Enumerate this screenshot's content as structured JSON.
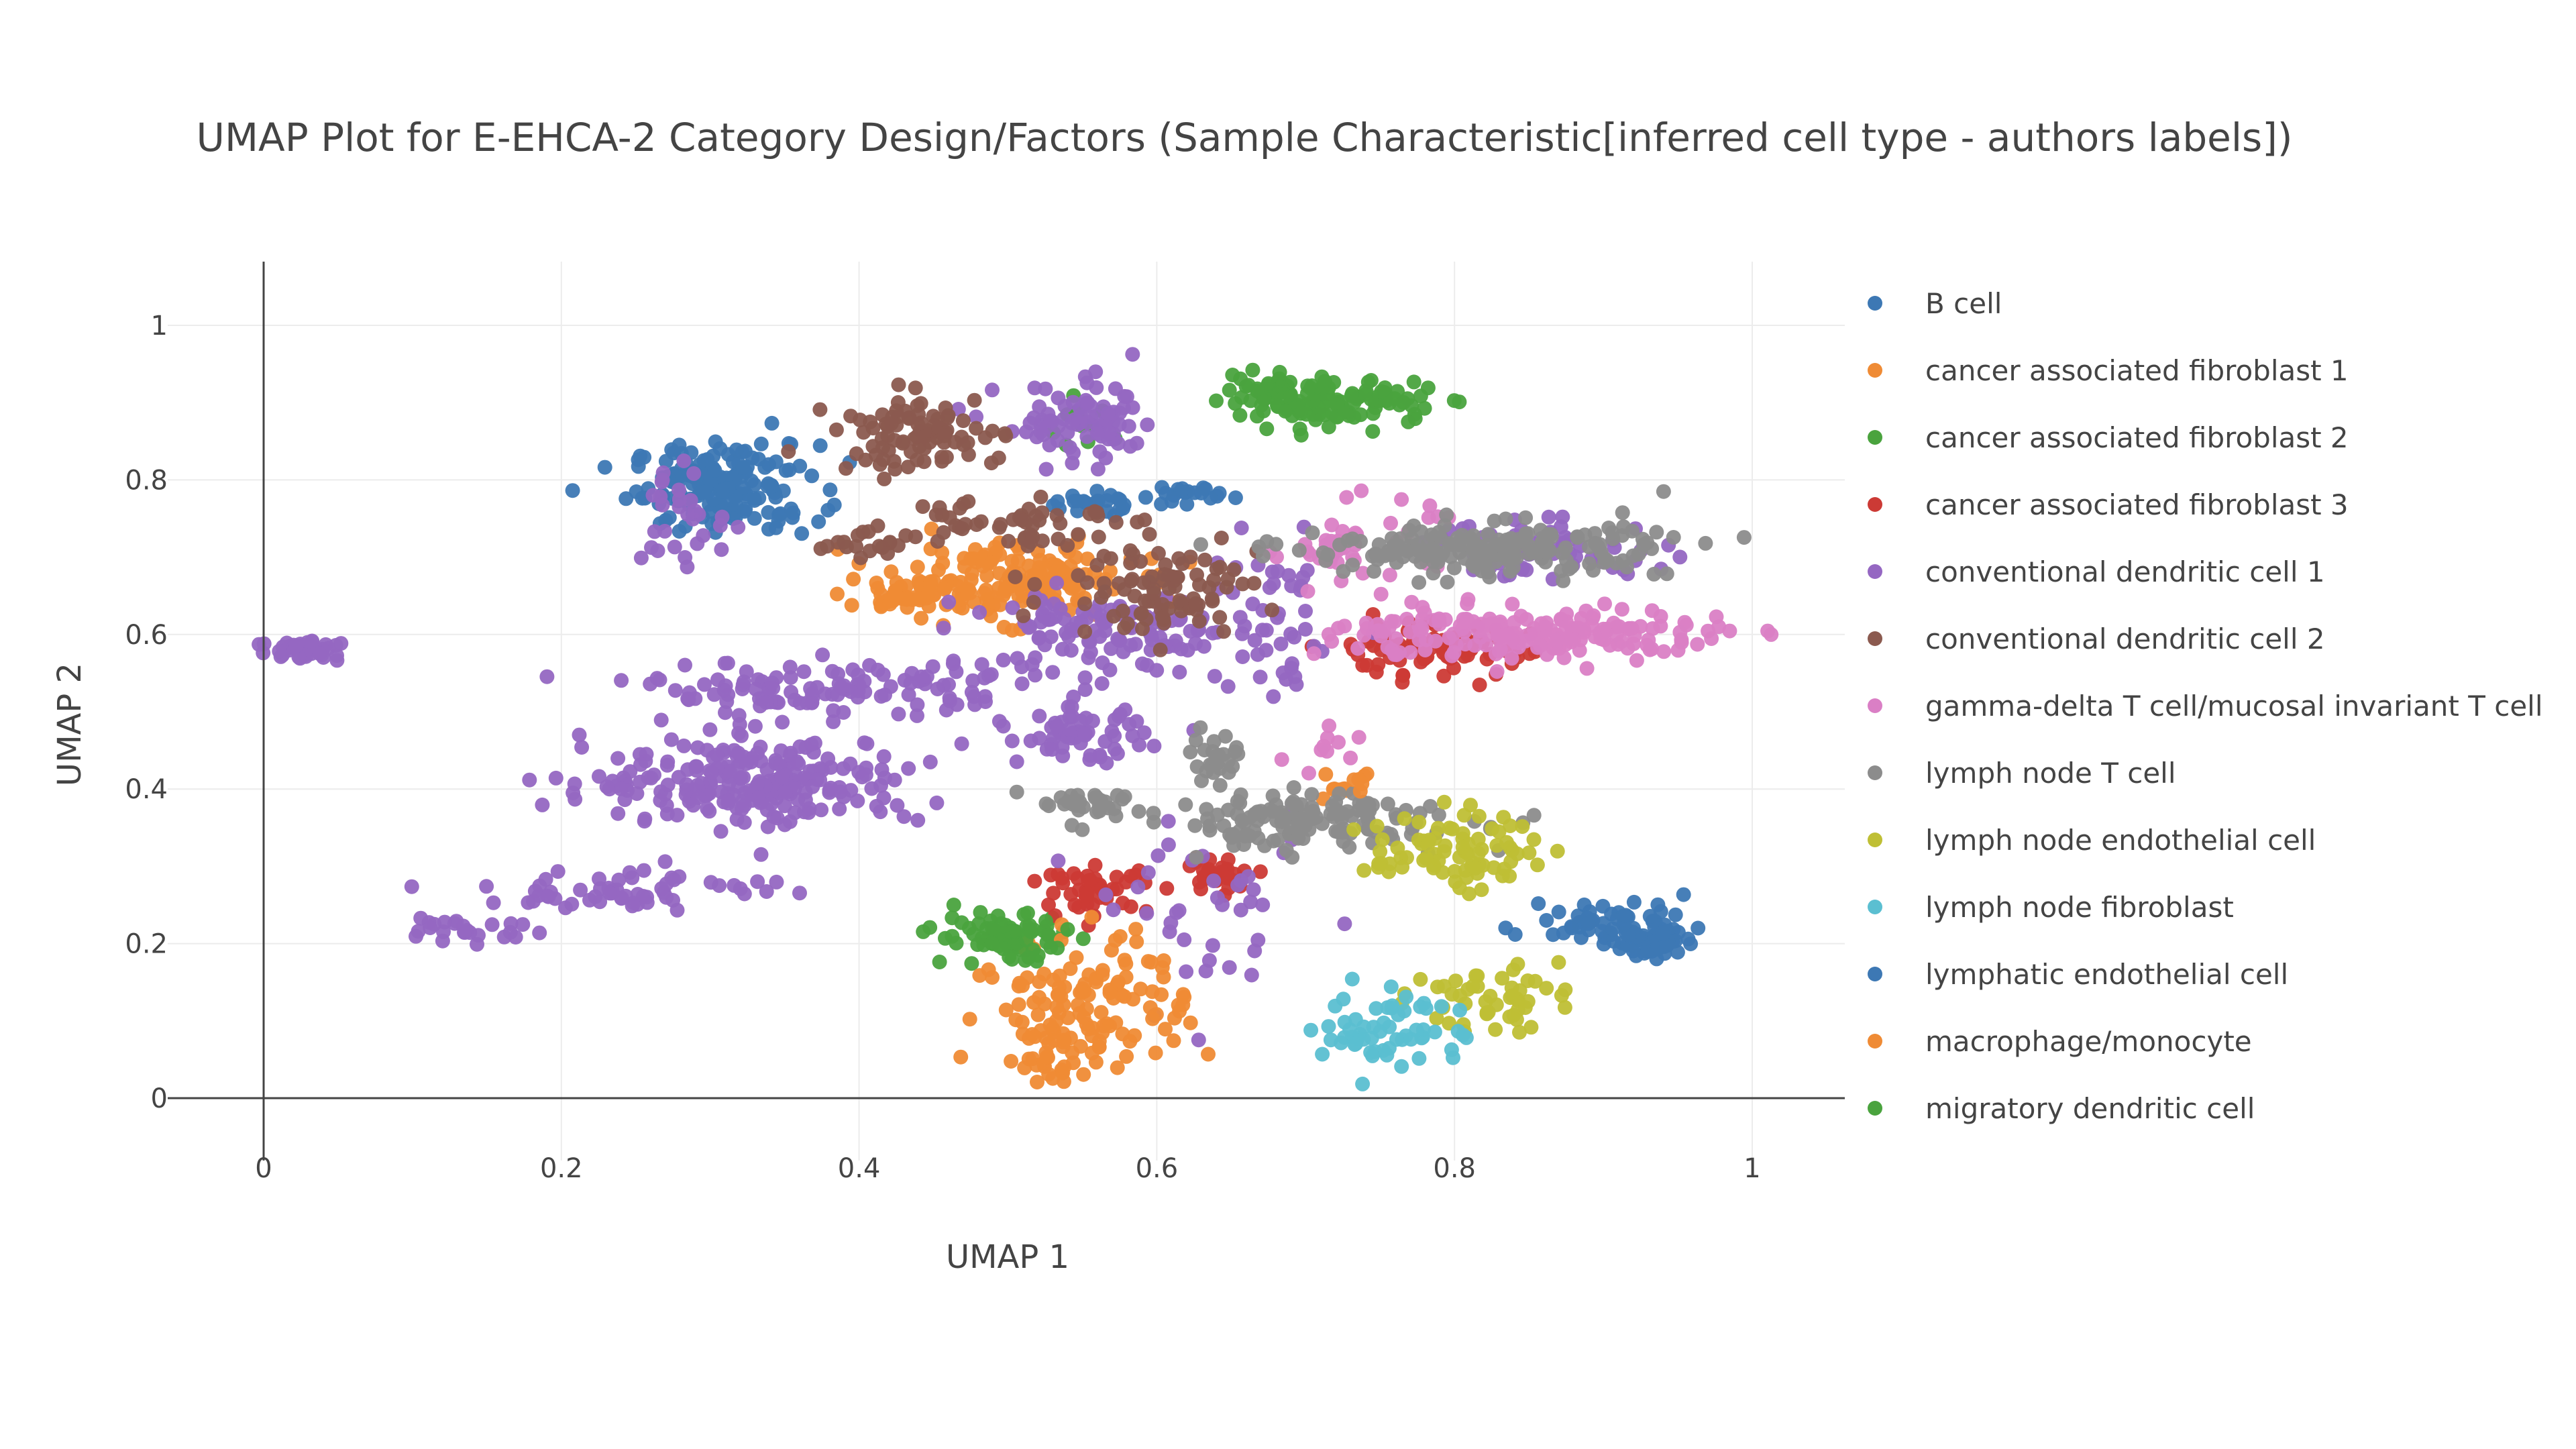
{
  "chart_data": {
    "type": "scatter",
    "title": "UMAP Plot for E-EHCA-2 Category Design/Factors (Sample Characteristic[inferred cell type - authors labels])",
    "xlabel": "UMAP 1",
    "ylabel": "UMAP 2",
    "xlim": [
      -0.12,
      1.07
    ],
    "ylim": [
      -0.06,
      1.07
    ],
    "xticks": [
      0,
      0.2,
      0.4,
      0.6,
      0.8,
      1
    ],
    "yticks": [
      0,
      0.2,
      0.4,
      0.6,
      0.8,
      1
    ],
    "xtick_labels": [
      "0",
      "0.2",
      "0.4",
      "0.6",
      "0.8",
      "1"
    ],
    "ytick_labels": [
      "0",
      "0.2",
      "0.4",
      "0.6",
      "0.8",
      "1"
    ],
    "grid": true,
    "legend_position": "right",
    "series": [
      {
        "name": "B cell",
        "color": "#3d78b4",
        "clusters": [
          [
            0.31,
            0.79,
            0.045,
            0.04,
            170
          ],
          [
            0.935,
            0.205,
            0.02,
            0.018,
            45
          ],
          [
            0.55,
            0.77,
            0.02,
            0.012,
            22
          ],
          [
            0.62,
            0.78,
            0.02,
            0.01,
            20
          ]
        ]
      },
      {
        "name": "cancer associated fibroblast 1",
        "color": "#ef8b35",
        "clusters": [
          [
            0.5,
            0.67,
            0.06,
            0.035,
            170
          ],
          [
            0.43,
            0.65,
            0.03,
            0.015,
            40
          ],
          [
            0.72,
            0.4,
            0.01,
            0.012,
            8
          ]
        ]
      },
      {
        "name": "cancer associated fibroblast 2",
        "color": "#4aa33e",
        "clusters": [
          [
            0.73,
            0.9,
            0.04,
            0.02,
            85
          ],
          [
            0.68,
            0.92,
            0.03,
            0.015,
            30
          ],
          [
            0.5,
            0.21,
            0.035,
            0.02,
            50
          ],
          [
            0.55,
            0.87,
            0.015,
            0.02,
            12
          ]
        ]
      },
      {
        "name": "cancer associated fibroblast 3",
        "color": "#cc3a35",
        "clusters": [
          [
            0.78,
            0.58,
            0.05,
            0.025,
            85
          ],
          [
            0.56,
            0.27,
            0.025,
            0.02,
            45
          ],
          [
            0.64,
            0.29,
            0.02,
            0.015,
            30
          ]
        ]
      },
      {
        "name": "conventional dendritic cell 1",
        "color": "#9567c2",
        "clusters": [
          [
            0.03,
            0.58,
            0.025,
            0.012,
            40
          ],
          [
            0.33,
            0.41,
            0.08,
            0.04,
            240
          ],
          [
            0.38,
            0.53,
            0.09,
            0.025,
            120
          ],
          [
            0.55,
            0.47,
            0.03,
            0.025,
            60
          ],
          [
            0.55,
            0.87,
            0.04,
            0.04,
            80
          ],
          [
            0.57,
            0.6,
            0.07,
            0.04,
            120
          ],
          [
            0.86,
            0.71,
            0.06,
            0.025,
            70
          ],
          [
            0.25,
            0.27,
            0.07,
            0.02,
            60
          ],
          [
            0.14,
            0.22,
            0.03,
            0.015,
            25
          ],
          [
            0.28,
            0.75,
            0.03,
            0.05,
            30
          ],
          [
            0.64,
            0.24,
            0.05,
            0.08,
            40
          ],
          [
            0.68,
            0.6,
            0.03,
            0.08,
            40
          ]
        ]
      },
      {
        "name": "conventional dendritic cell 2",
        "color": "#8b5a4f",
        "clusters": [
          [
            0.44,
            0.86,
            0.04,
            0.035,
            90
          ],
          [
            0.6,
            0.66,
            0.05,
            0.04,
            90
          ],
          [
            0.5,
            0.75,
            0.05,
            0.025,
            50
          ],
          [
            0.4,
            0.72,
            0.03,
            0.02,
            20
          ]
        ]
      },
      {
        "name": "gamma-delta T cell/mucosal invariant T cell",
        "color": "#da7fc5",
        "clusters": [
          [
            0.85,
            0.6,
            0.09,
            0.025,
            190
          ],
          [
            0.73,
            0.72,
            0.04,
            0.04,
            40
          ],
          [
            0.72,
            0.45,
            0.03,
            0.02,
            10
          ]
        ]
      },
      {
        "name": "lymph node T cell",
        "color": "#8c8c8c",
        "clusters": [
          [
            0.82,
            0.71,
            0.09,
            0.025,
            190
          ],
          [
            0.7,
            0.36,
            0.08,
            0.025,
            140
          ],
          [
            0.64,
            0.44,
            0.015,
            0.03,
            25
          ],
          [
            0.55,
            0.38,
            0.03,
            0.01,
            30
          ]
        ]
      },
      {
        "name": "lymph node endothelial cell",
        "color": "#bfbf35",
        "clusters": [
          [
            0.8,
            0.32,
            0.04,
            0.035,
            80
          ],
          [
            0.82,
            0.13,
            0.035,
            0.03,
            50
          ]
        ]
      },
      {
        "name": "lymph node fibroblast",
        "color": "#5bbfd1",
        "clusters": [
          [
            0.76,
            0.09,
            0.035,
            0.04,
            60
          ]
        ]
      },
      {
        "name": "lymphatic endothelial cell",
        "color": "#3d78b4",
        "clusters": [
          [
            0.9,
            0.23,
            0.04,
            0.02,
            50
          ]
        ]
      },
      {
        "name": "macrophage/monocyte",
        "color": "#ef8b35",
        "clusters": [
          [
            0.56,
            0.13,
            0.045,
            0.06,
            120
          ],
          [
            0.53,
            0.05,
            0.03,
            0.025,
            30
          ],
          [
            0.74,
            0.41,
            0.01,
            0.01,
            6
          ]
        ]
      },
      {
        "name": "migratory dendritic cell",
        "color": "#4aa33e",
        "clusters": [
          [
            0.5,
            0.2,
            0.03,
            0.02,
            30
          ],
          [
            0.68,
            0.9,
            0.03,
            0.02,
            20
          ]
        ]
      }
    ]
  }
}
